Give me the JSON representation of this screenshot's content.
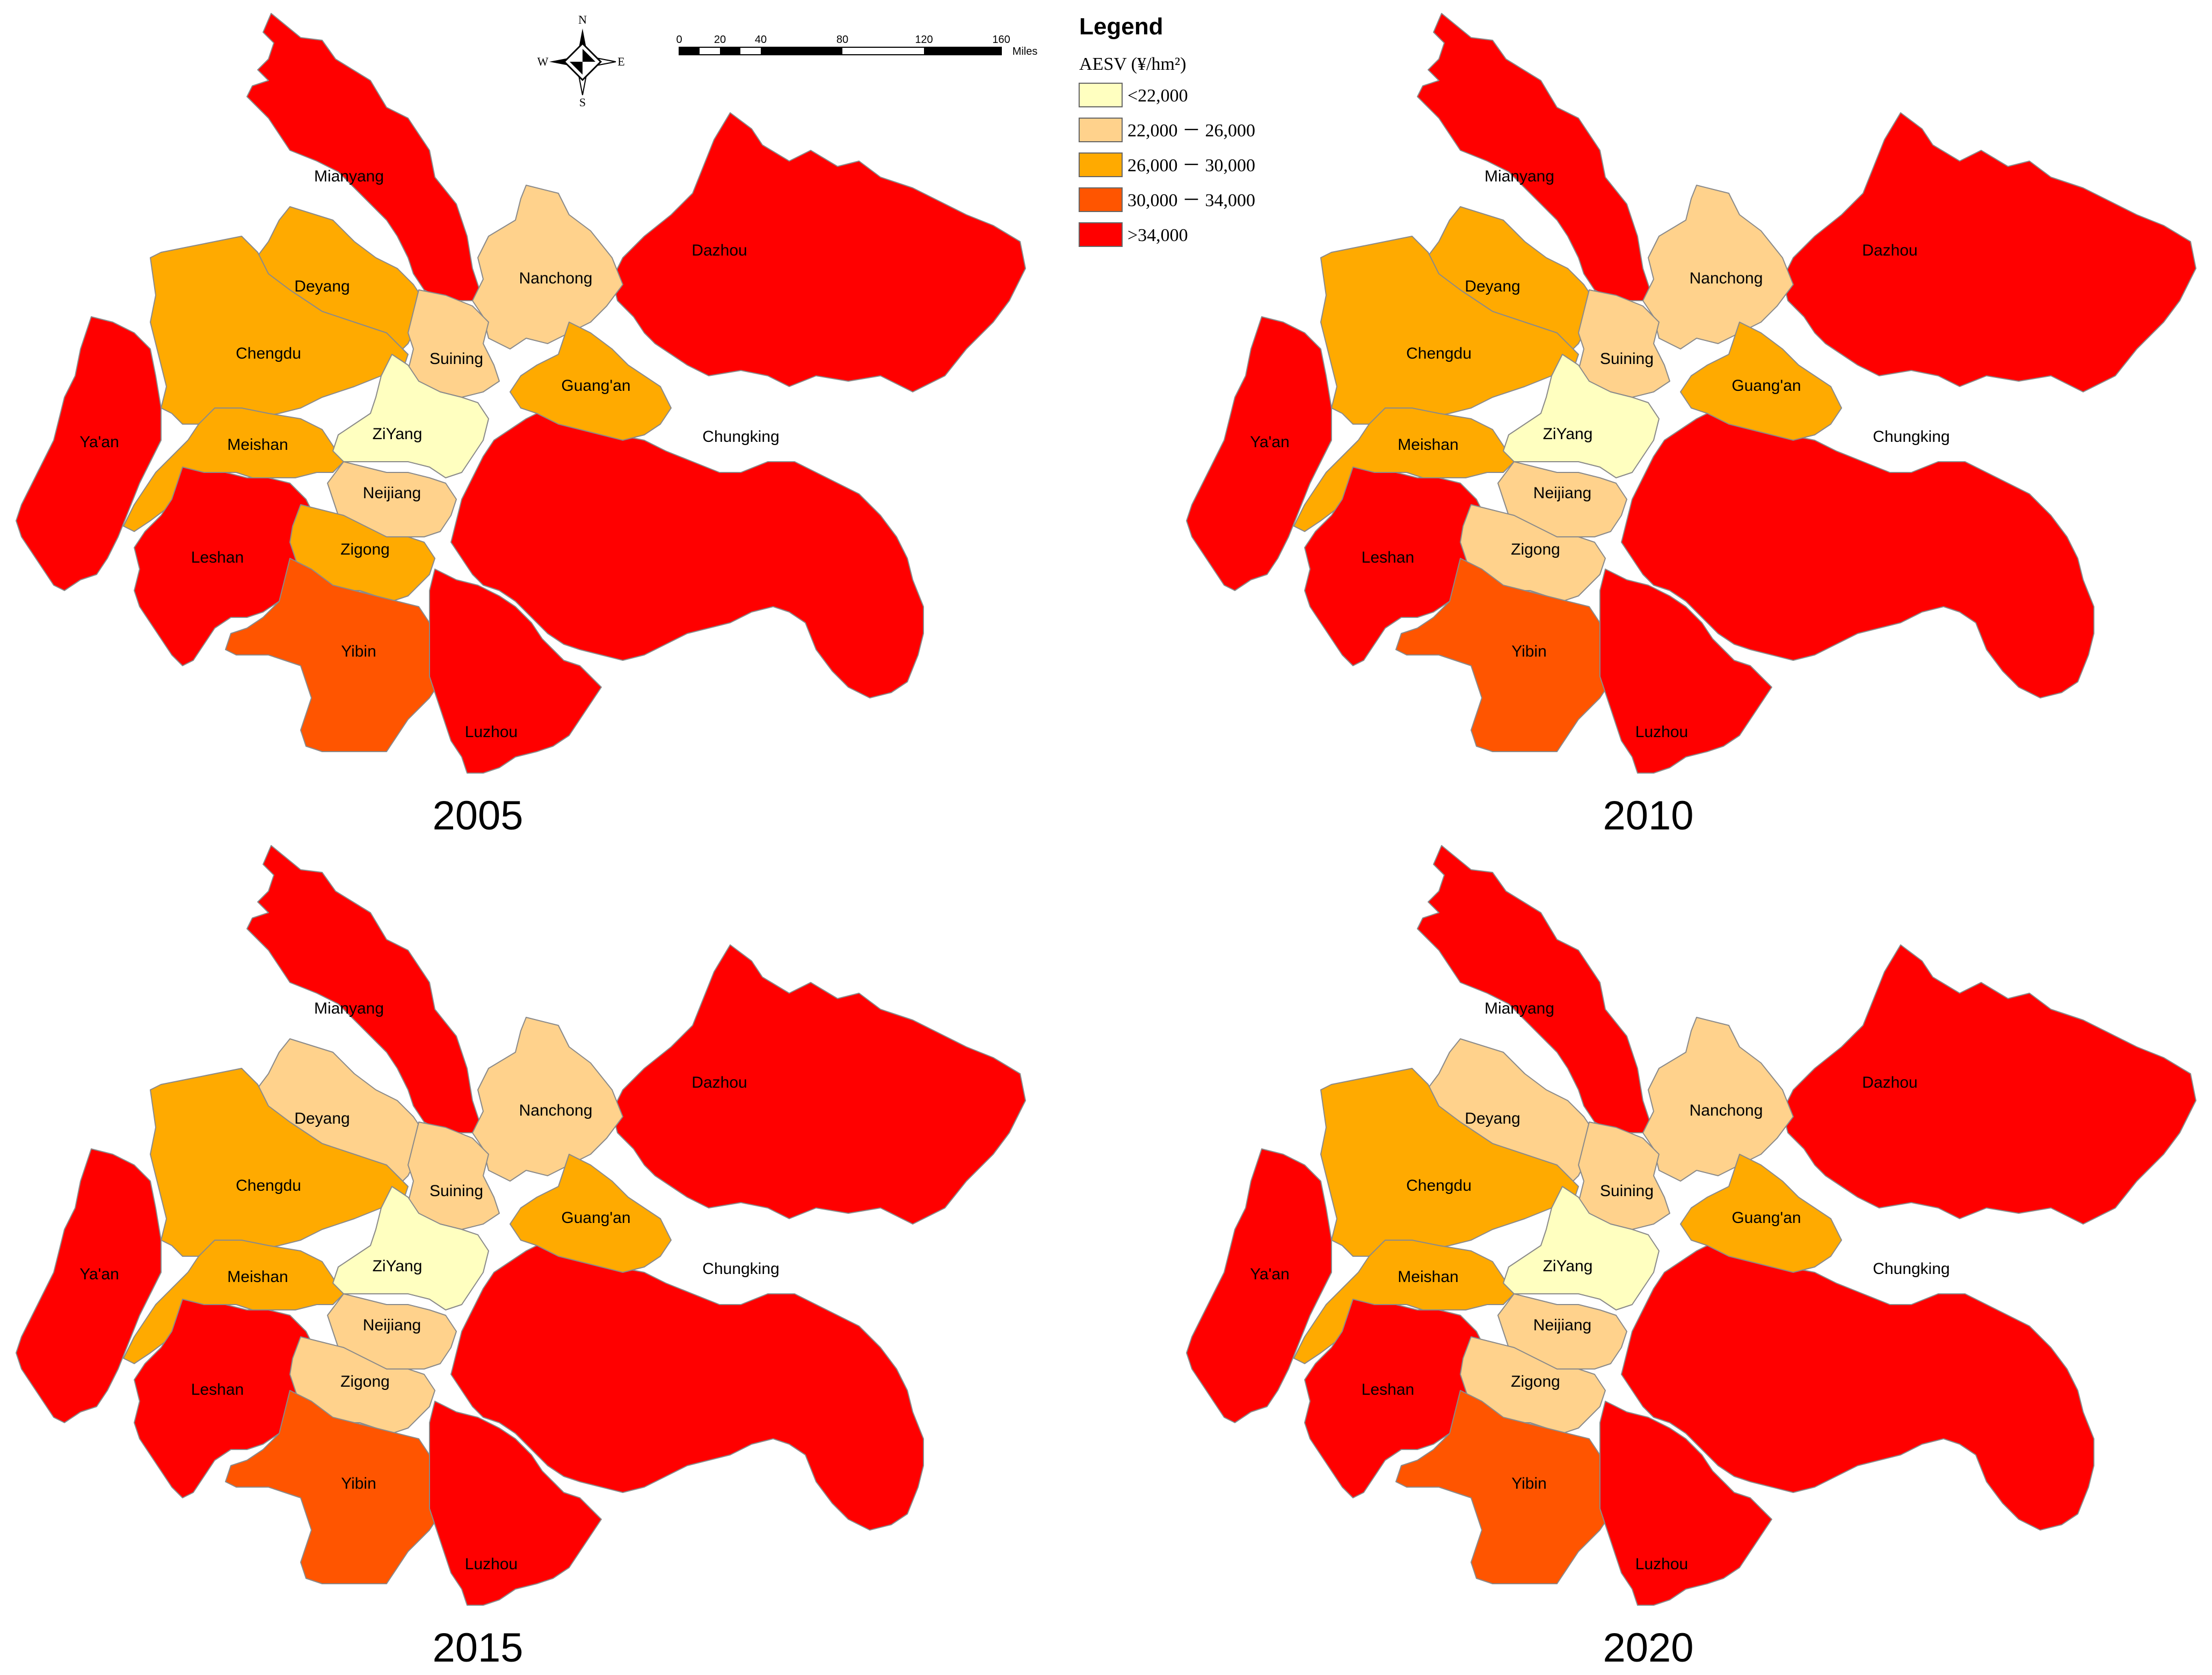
{
  "legend": {
    "title": "Legend",
    "subtitle": "AESV (¥/hm²)",
    "classes": [
      {
        "label": "<22,000",
        "color": "#ffffc0"
      },
      {
        "label": "22,000 － 26,000",
        "color": "#ffd28c"
      },
      {
        "label": "26,000 － 30,000",
        "color": "#ffaa00"
      },
      {
        "label": "30,000 － 34,000",
        "color": "#ff5500"
      },
      {
        "label": ">34,000",
        "color": "#ff0000"
      }
    ]
  },
  "compass": {
    "n": "N",
    "s": "S",
    "e": "E",
    "w": "W"
  },
  "scale_bar": {
    "ticks": [
      "0",
      "20",
      "40",
      "80",
      "120",
      "160"
    ],
    "unit": "Miles"
  },
  "maps": [
    {
      "year": "2005",
      "regions": {
        "Mianyang": 4,
        "Deyang": 2,
        "Chengdu": 2,
        "Ya'an": 4,
        "Meishan": 2,
        "Leshan": 4,
        "Nanchong": 1,
        "Suining": 1,
        "Guang'an": 2,
        "ZiYang": 0,
        "Neijiang": 1,
        "Zigong": 2,
        "Yibin": 3,
        "Luzhou": 4,
        "Dazhou": 4,
        "Chungking": 4
      }
    },
    {
      "year": "2010",
      "regions": {
        "Mianyang": 4,
        "Deyang": 2,
        "Chengdu": 2,
        "Ya'an": 4,
        "Meishan": 2,
        "Leshan": 4,
        "Nanchong": 1,
        "Suining": 1,
        "Guang'an": 2,
        "ZiYang": 0,
        "Neijiang": 1,
        "Zigong": 1,
        "Yibin": 3,
        "Luzhou": 4,
        "Dazhou": 4,
        "Chungking": 4
      }
    },
    {
      "year": "2015",
      "regions": {
        "Mianyang": 4,
        "Deyang": 1,
        "Chengdu": 2,
        "Ya'an": 4,
        "Meishan": 2,
        "Leshan": 4,
        "Nanchong": 1,
        "Suining": 1,
        "Guang'an": 2,
        "ZiYang": 0,
        "Neijiang": 1,
        "Zigong": 1,
        "Yibin": 3,
        "Luzhou": 4,
        "Dazhou": 4,
        "Chungking": 4
      }
    },
    {
      "year": "2020",
      "regions": {
        "Mianyang": 4,
        "Deyang": 1,
        "Chengdu": 2,
        "Ya'an": 4,
        "Meishan": 2,
        "Leshan": 4,
        "Nanchong": 1,
        "Suining": 1,
        "Guang'an": 2,
        "ZiYang": 0,
        "Neijiang": 1,
        "Zigong": 1,
        "Yibin": 3,
        "Luzhou": 4,
        "Dazhou": 4,
        "Chungking": 4
      }
    }
  ]
}
